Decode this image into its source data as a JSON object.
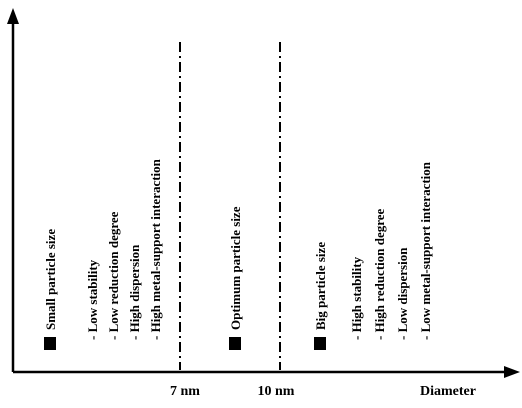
{
  "axis": {
    "x_label": "Diameter",
    "tick_7": "7 nm",
    "tick_10": "10 nm"
  },
  "regions": {
    "small": {
      "title": "Small particle size",
      "items": [
        "- Low stability",
        "- Low reduction degree",
        "- High dispersion",
        "- High metal-support interaction"
      ]
    },
    "optimum": {
      "title": "Optimum particle size"
    },
    "big": {
      "title": "Big particle size",
      "items": [
        "- High stability",
        "- High reduction degree",
        "- Low dispersion",
        "- Low metal-support interaction"
      ]
    }
  },
  "colors": {
    "ink": "#000000",
    "background": "#ffffff"
  }
}
